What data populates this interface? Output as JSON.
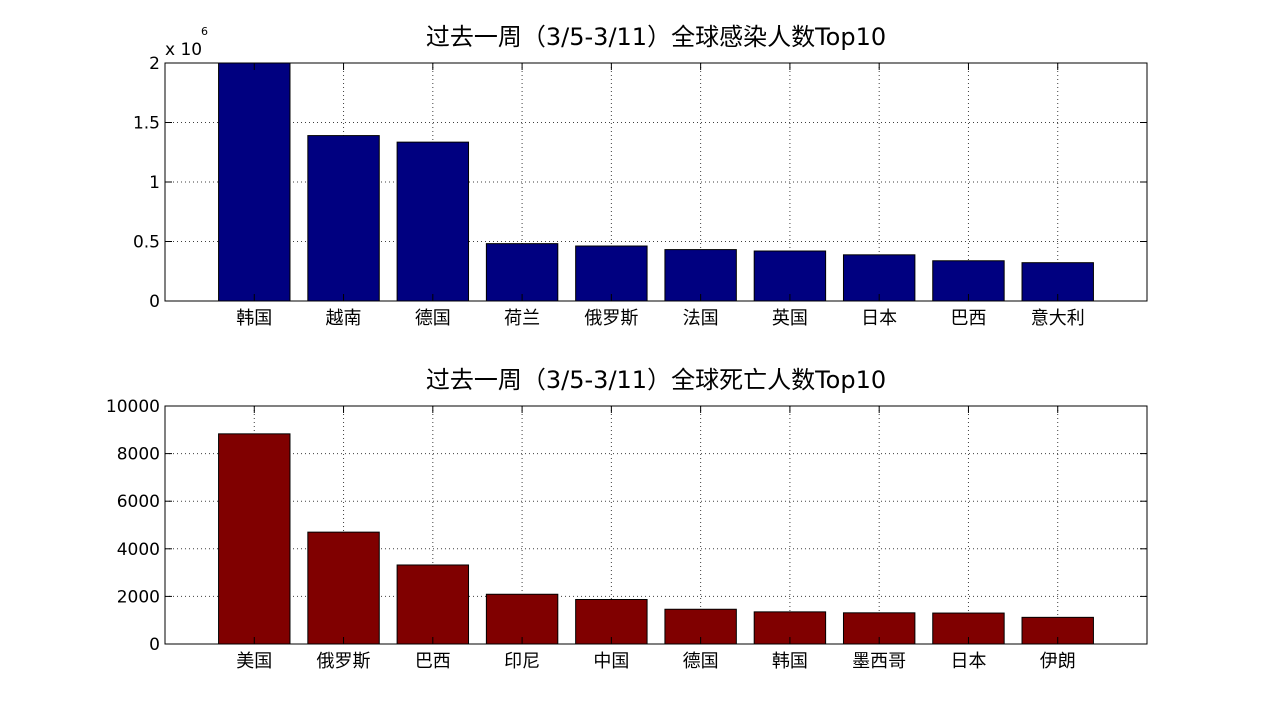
{
  "chart_data": [
    {
      "type": "bar",
      "title": "过去一周（3/5-3/11）全球感染人数Top10",
      "categories": [
        "韩国",
        "越南",
        "德国",
        "荷兰",
        "俄罗斯",
        "法国",
        "英国",
        "日本",
        "巴西",
        "意大利"
      ],
      "values": [
        2000000,
        1390000,
        1335000,
        482000,
        462000,
        432000,
        420000,
        388000,
        338000,
        322000
      ],
      "ylim": [
        0,
        2000000
      ],
      "yticks": [
        0,
        500000,
        1000000,
        1500000,
        2000000
      ],
      "ytick_labels": [
        "0",
        "0.5",
        "1",
        "1.5",
        "2"
      ],
      "multiplier": {
        "base": "x 10",
        "exponent": "6"
      },
      "bar_color": "#000080",
      "grid": true
    },
    {
      "type": "bar",
      "title": "过去一周（3/5-3/11）全球死亡人数Top10",
      "categories": [
        "美国",
        "俄罗斯",
        "巴西",
        "印尼",
        "中国",
        "德国",
        "韩国",
        "墨西哥",
        "日本",
        "伊朗"
      ],
      "values": [
        8830,
        4700,
        3320,
        2090,
        1870,
        1460,
        1350,
        1310,
        1300,
        1120
      ],
      "ylim": [
        0,
        10000
      ],
      "yticks": [
        0,
        2000,
        4000,
        6000,
        8000,
        10000
      ],
      "ytick_labels": [
        "0",
        "2000",
        "4000",
        "6000",
        "8000",
        "10000"
      ],
      "bar_color": "#800000",
      "grid": true
    }
  ]
}
